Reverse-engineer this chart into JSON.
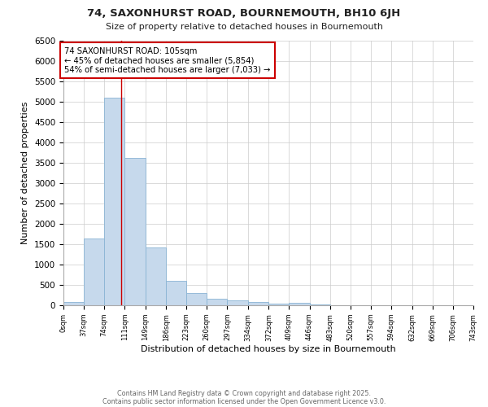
{
  "title_line1": "74, SAXONHURST ROAD, BOURNEMOUTH, BH10 6JH",
  "title_line2": "Size of property relative to detached houses in Bournemouth",
  "xlabel": "Distribution of detached houses by size in Bournemouth",
  "ylabel": "Number of detached properties",
  "bar_edges": [
    0,
    37,
    74,
    111,
    149,
    186,
    223,
    260,
    297,
    334,
    372,
    409,
    446,
    483,
    520,
    557,
    594,
    632,
    669,
    706,
    743
  ],
  "bar_heights": [
    75,
    1640,
    5100,
    3620,
    1420,
    600,
    310,
    160,
    130,
    90,
    35,
    55,
    30,
    0,
    0,
    0,
    0,
    0,
    0,
    0
  ],
  "bar_color": "#c6d9ec",
  "bar_edgecolor": "#8ab4d4",
  "property_size": 105,
  "vline_color": "#cc0000",
  "annotation_text": "74 SAXONHURST ROAD: 105sqm\n← 45% of detached houses are smaller (5,854)\n54% of semi-detached houses are larger (7,033) →",
  "annotation_box_edgecolor": "#cc0000",
  "ylim": [
    0,
    6500
  ],
  "yticks": [
    0,
    500,
    1000,
    1500,
    2000,
    2500,
    3000,
    3500,
    4000,
    4500,
    5000,
    5500,
    6000,
    6500
  ],
  "tick_labels": [
    "0sqm",
    "37sqm",
    "74sqm",
    "111sqm",
    "149sqm",
    "186sqm",
    "223sqm",
    "260sqm",
    "297sqm",
    "334sqm",
    "372sqm",
    "409sqm",
    "446sqm",
    "483sqm",
    "520sqm",
    "557sqm",
    "594sqm",
    "632sqm",
    "669sqm",
    "706sqm",
    "743sqm"
  ],
  "footnote1": "Contains HM Land Registry data © Crown copyright and database right 2025.",
  "footnote2": "Contains public sector information licensed under the Open Government Licence v3.0.",
  "bg_color": "#ffffff",
  "plot_bg_color": "#ffffff",
  "grid_color": "#cccccc"
}
